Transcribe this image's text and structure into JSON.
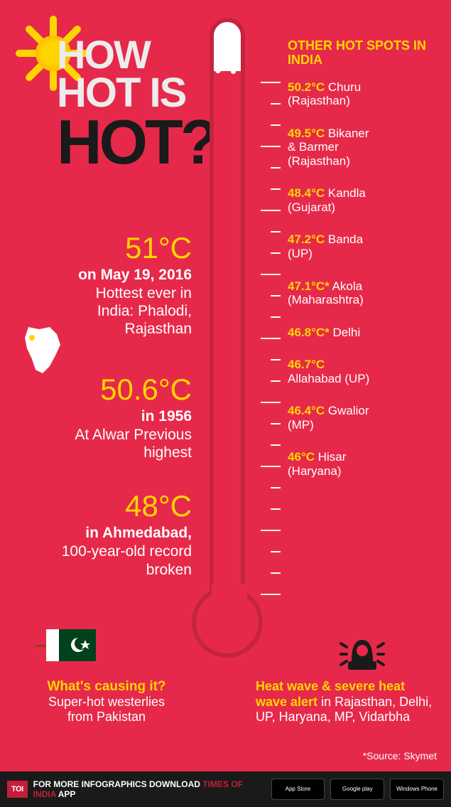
{
  "title": {
    "l1": "HOW",
    "l2": "HOT IS",
    "l3": "HOT?"
  },
  "facts": [
    {
      "temp": "51°C",
      "date": "on May 19, 2016",
      "desc1": "Hottest ever in",
      "desc2": "India: Phalodi,",
      "desc3": "Rajasthan"
    },
    {
      "temp": "50.6°C",
      "date": "in 1956",
      "desc1": "At Alwar Previous",
      "desc2": "highest",
      "desc3": ""
    },
    {
      "temp": "48°C",
      "date": "in Ahmedabad,",
      "desc1": "100-year-old record",
      "desc2": "broken",
      "desc3": ""
    }
  ],
  "right_header": "OTHER HOT SPOTS IN INDIA",
  "hotspots": [
    {
      "t": "50.2°C",
      "loc1": "Churu",
      "loc2": "(Rajasthan)"
    },
    {
      "t": "49.5°C",
      "loc1": "Bikaner",
      "loc2": "& Barmer",
      "loc3": "(Rajasthan)"
    },
    {
      "t": "48.4°C",
      "loc1": "Kandla",
      "loc2": "(Gujarat)"
    },
    {
      "t": "47.2°C",
      "loc1": "Banda",
      "loc2": "(UP)"
    },
    {
      "t": "47.1°C*",
      "loc1": "Akola",
      "loc2": "(Maharashtra)"
    },
    {
      "t": "46.8°C*",
      "loc1": "Delhi",
      "loc2": ""
    },
    {
      "t": "46.7°C",
      "loc1": "",
      "loc2": "Allahabad (UP)"
    },
    {
      "t": "46.4°C",
      "loc1": "Gwalior",
      "loc2": "(MP)"
    },
    {
      "t": "46°C",
      "loc1": "Hisar",
      "loc2": "(Haryana)"
    }
  ],
  "bottom_left": {
    "q": "What's causing it?",
    "a1": "Super-hot westerlies",
    "a2": "from Pakistan"
  },
  "bottom_right": {
    "hl": "Heat wave & severe heat wave alert",
    "rest": " in Rajasthan, Delhi, UP, Haryana, MP, Vidarbha"
  },
  "source": "*Source: Skymet",
  "footer": {
    "toi": "TOI",
    "text1": "FOR MORE  INFOGRAPHICS DOWNLOAD ",
    "text2": "TIMES OF INDIA",
    "text3": "  APP"
  },
  "stores": [
    "App Store",
    "Google play",
    "Windows Phone"
  ],
  "colors": {
    "bg": "#e6294a",
    "accent": "#ffd500",
    "dark": "#1a1a1a",
    "tube": "#c4243e"
  },
  "tick_positions": [
    90,
    120,
    150,
    180,
    210,
    240,
    270,
    300,
    330,
    360,
    390,
    420,
    450,
    480,
    510,
    540,
    570,
    600,
    630,
    660,
    690,
    720,
    750,
    780,
    810
  ],
  "tick_major_every": 3
}
